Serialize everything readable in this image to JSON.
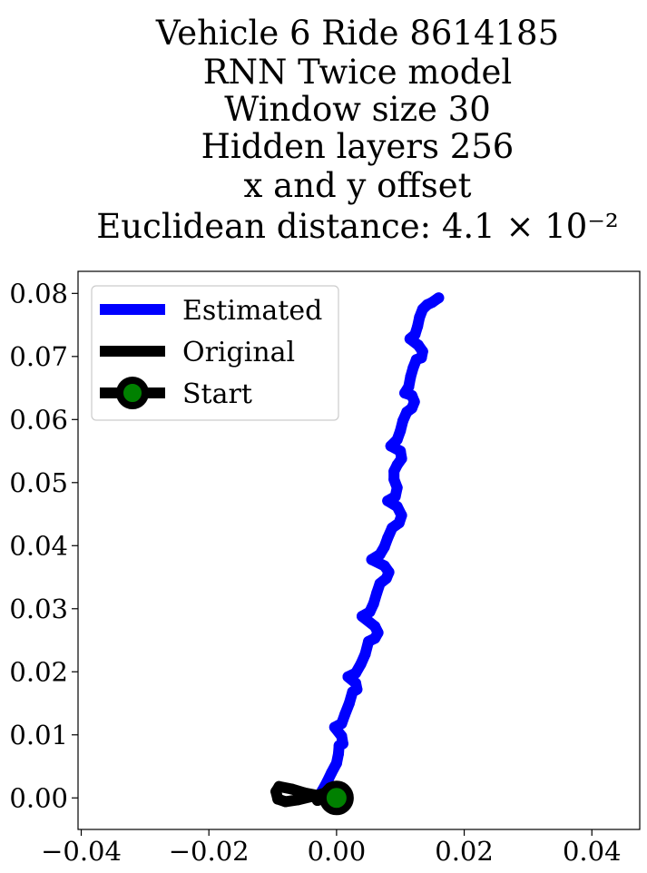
{
  "chart_data": {
    "type": "line",
    "title_lines": [
      "Vehicle 6 Ride 8614185",
      "RNN Twice model",
      "Window size 30",
      "Hidden layers 256",
      "x and y offset",
      "Euclidean distance: 4.1 × 10⁻²"
    ],
    "xlabel": "",
    "ylabel": "",
    "xlim": [
      -0.0405,
      0.0475
    ],
    "ylim": [
      -0.005,
      0.0835
    ],
    "xticks": [
      -0.04,
      -0.02,
      0.0,
      0.02,
      0.04
    ],
    "xtick_labels": [
      "−0.04",
      "−0.02",
      "0.00",
      "0.02",
      "0.04"
    ],
    "yticks": [
      0.0,
      0.01,
      0.02,
      0.03,
      0.04,
      0.05,
      0.06,
      0.07,
      0.08
    ],
    "ytick_labels": [
      "0.00",
      "0.01",
      "0.02",
      "0.03",
      "0.04",
      "0.05",
      "0.06",
      "0.07",
      "0.08"
    ],
    "grid": false,
    "legend_position": "upper-left",
    "series": [
      {
        "name": "Estimated",
        "color": "#0000ff",
        "points": [
          [
            -0.003,
            0.0
          ],
          [
            -0.0022,
            0.0012
          ],
          [
            -0.0015,
            0.0025
          ],
          [
            -0.0008,
            0.004
          ],
          [
            0.0,
            0.0055
          ],
          [
            0.0003,
            0.007
          ],
          [
            0.0004,
            0.0083
          ],
          [
            0.001,
            0.0086
          ],
          [
            0.0008,
            0.0098
          ],
          [
            -0.0003,
            0.0112
          ],
          [
            0.0008,
            0.0118
          ],
          [
            0.0013,
            0.0132
          ],
          [
            0.002,
            0.015
          ],
          [
            0.0025,
            0.0168
          ],
          [
            0.0032,
            0.0172
          ],
          [
            0.003,
            0.0182
          ],
          [
            0.0018,
            0.0192
          ],
          [
            0.003,
            0.0198
          ],
          [
            0.0038,
            0.0212
          ],
          [
            0.0045,
            0.0228
          ],
          [
            0.005,
            0.0248
          ],
          [
            0.006,
            0.0253
          ],
          [
            0.0065,
            0.0262
          ],
          [
            0.006,
            0.0272
          ],
          [
            0.004,
            0.0288
          ],
          [
            0.0052,
            0.0295
          ],
          [
            0.0058,
            0.0308
          ],
          [
            0.0063,
            0.0325
          ],
          [
            0.0068,
            0.034
          ],
          [
            0.0078,
            0.0348
          ],
          [
            0.0082,
            0.0358
          ],
          [
            0.0075,
            0.0368
          ],
          [
            0.0055,
            0.0378
          ],
          [
            0.0068,
            0.0386
          ],
          [
            0.0075,
            0.0398
          ],
          [
            0.008,
            0.0412
          ],
          [
            0.0087,
            0.0428
          ],
          [
            0.0098,
            0.0436
          ],
          [
            0.0102,
            0.0448
          ],
          [
            0.0095,
            0.0462
          ],
          [
            0.008,
            0.0471
          ],
          [
            0.0092,
            0.0478
          ],
          [
            0.0095,
            0.0492
          ],
          [
            0.009,
            0.0505
          ],
          [
            0.009,
            0.0518
          ],
          [
            0.0095,
            0.0528
          ],
          [
            0.0102,
            0.0538
          ],
          [
            0.01,
            0.055
          ],
          [
            0.0085,
            0.0558
          ],
          [
            0.0095,
            0.0568
          ],
          [
            0.01,
            0.0582
          ],
          [
            0.0104,
            0.0598
          ],
          [
            0.011,
            0.0612
          ],
          [
            0.0118,
            0.0618
          ],
          [
            0.0122,
            0.0628
          ],
          [
            0.0118,
            0.0638
          ],
          [
            0.0107,
            0.0642
          ],
          [
            0.0113,
            0.0652
          ],
          [
            0.0116,
            0.0668
          ],
          [
            0.012,
            0.0682
          ],
          [
            0.0125,
            0.0695
          ],
          [
            0.0133,
            0.0698
          ],
          [
            0.0135,
            0.0708
          ],
          [
            0.0128,
            0.0718
          ],
          [
            0.0115,
            0.0728
          ],
          [
            0.0123,
            0.0735
          ],
          [
            0.0127,
            0.0748
          ],
          [
            0.013,
            0.0762
          ],
          [
            0.0135,
            0.0775
          ],
          [
            0.0142,
            0.0782
          ],
          [
            0.015,
            0.0786
          ],
          [
            0.016,
            0.0793
          ]
        ]
      },
      {
        "name": "Original",
        "color": "#000000",
        "points": [
          [
            0.0,
            0.0
          ],
          [
            -0.002,
            0.0005
          ],
          [
            -0.004,
            0.0002
          ],
          [
            -0.006,
            -0.0003
          ],
          [
            -0.008,
            -0.0006
          ],
          [
            -0.0092,
            -0.0002
          ],
          [
            -0.0095,
            0.001
          ],
          [
            -0.009,
            0.0018
          ],
          [
            -0.007,
            0.0014
          ],
          [
            -0.005,
            0.0008
          ],
          [
            -0.003,
            0.0004
          ],
          [
            -0.0018,
            0.0008
          ],
          [
            -0.001,
            0.0016
          ],
          [
            -0.0008,
            0.001
          ],
          [
            -0.0018,
            0.0
          ],
          [
            -0.003,
            -0.0004
          ],
          [
            -0.0018,
            0.0002
          ],
          [
            -0.0006,
            0.0006
          ],
          [
            0.0,
            0.0
          ]
        ]
      }
    ],
    "start_point": {
      "name": "Start",
      "x": 0.0,
      "y": 0.0,
      "edge_color": "#000000",
      "fill_color": "#008000"
    }
  }
}
